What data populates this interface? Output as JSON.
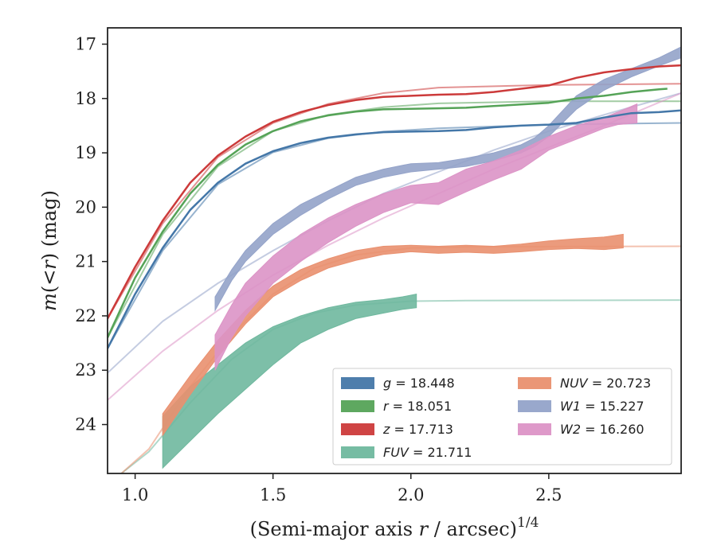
{
  "chart_data": {
    "type": "line",
    "xlabel": "(Semi-major axis r / arcsec)^{1/4}",
    "ylabel": "m(<r) (mag)",
    "xlim": [
      0.9,
      2.98
    ],
    "ylim": [
      24.9,
      16.7
    ],
    "y_inverted": true,
    "x_ticks": [
      1.0,
      1.5,
      2.0,
      2.5
    ],
    "x_tick_labels": [
      "1.0",
      "1.5",
      "2.0",
      "2.5"
    ],
    "y_ticks": [
      17,
      18,
      19,
      20,
      21,
      22,
      23,
      24
    ],
    "y_tick_labels": [
      "17",
      "18",
      "19",
      "20",
      "21",
      "22",
      "23",
      "24"
    ],
    "grid": false,
    "legend": {
      "placement": "lower-right",
      "columns": 2
    },
    "series": [
      {
        "name": "g = 18.448",
        "key": "g",
        "color": "#4477a8",
        "kind": "line",
        "lw": 2.5,
        "x": [
          0.9,
          1.0,
          1.1,
          1.2,
          1.3,
          1.4,
          1.5,
          1.6,
          1.7,
          1.8,
          1.9,
          2.0,
          2.1,
          2.2,
          2.3,
          2.4,
          2.5,
          2.6,
          2.7,
          2.8,
          2.9,
          2.98
        ],
        "y": [
          22.6,
          21.6,
          20.75,
          20.05,
          19.55,
          19.2,
          18.97,
          18.82,
          18.72,
          18.66,
          18.62,
          18.61,
          18.6,
          18.58,
          18.53,
          18.5,
          18.48,
          18.45,
          18.35,
          18.27,
          18.25,
          18.22
        ],
        "model": {
          "x": [
            0.9,
            1.1,
            1.3,
            1.5,
            1.7,
            1.9,
            2.1,
            2.5,
            2.98
          ],
          "y": [
            22.6,
            20.8,
            19.58,
            18.99,
            18.73,
            18.61,
            18.55,
            18.48,
            18.45
          ]
        }
      },
      {
        "name": "r = 18.051",
        "key": "r",
        "color": "#55a357",
        "kind": "line",
        "lw": 2.5,
        "x": [
          0.9,
          1.0,
          1.1,
          1.2,
          1.3,
          1.4,
          1.5,
          1.6,
          1.7,
          1.8,
          1.9,
          2.0,
          2.1,
          2.2,
          2.3,
          2.4,
          2.5,
          2.6,
          2.7,
          2.8,
          2.9,
          2.93
        ],
        "y": [
          22.4,
          21.3,
          20.45,
          19.75,
          19.22,
          18.85,
          18.6,
          18.42,
          18.31,
          18.24,
          18.2,
          18.19,
          18.18,
          18.17,
          18.14,
          18.11,
          18.08,
          18.0,
          17.95,
          17.88,
          17.83,
          17.82
        ],
        "model": {
          "x": [
            0.9,
            1.1,
            1.3,
            1.5,
            1.7,
            1.9,
            2.1,
            2.5,
            2.98
          ],
          "y": [
            22.4,
            20.5,
            19.25,
            18.6,
            18.3,
            18.16,
            18.09,
            18.05,
            18.05
          ]
        }
      },
      {
        "name": "z = 17.713",
        "key": "z",
        "color": "#cc3a3a",
        "kind": "line",
        "lw": 2.5,
        "x": [
          0.9,
          1.0,
          1.1,
          1.2,
          1.3,
          1.4,
          1.5,
          1.6,
          1.7,
          1.8,
          1.9,
          2.0,
          2.1,
          2.2,
          2.3,
          2.4,
          2.5,
          2.6,
          2.7,
          2.8,
          2.9,
          2.98
        ],
        "y": [
          22.05,
          21.1,
          20.25,
          19.55,
          19.05,
          18.7,
          18.43,
          18.25,
          18.12,
          18.03,
          17.97,
          17.95,
          17.93,
          17.92,
          17.88,
          17.82,
          17.76,
          17.62,
          17.52,
          17.46,
          17.41,
          17.39
        ],
        "model": {
          "x": [
            0.9,
            1.1,
            1.3,
            1.5,
            1.7,
            1.9,
            2.1,
            2.5,
            2.98
          ],
          "y": [
            22.05,
            20.3,
            19.08,
            18.45,
            18.1,
            17.9,
            17.8,
            17.75,
            17.73
          ]
        }
      },
      {
        "name": "FUV = 21.711",
        "key": "FUV",
        "color": "#6fb89e",
        "kind": "band",
        "x": [
          1.1,
          1.2,
          1.3,
          1.4,
          1.5,
          1.6,
          1.7,
          1.8,
          1.9,
          1.97,
          2.02
        ],
        "y_bright": [
          23.85,
          23.3,
          22.9,
          22.5,
          22.2,
          22.0,
          21.85,
          21.75,
          21.7,
          21.65,
          21.6
        ],
        "y_faint": [
          24.8,
          24.3,
          23.8,
          23.35,
          22.9,
          22.5,
          22.25,
          22.05,
          21.95,
          21.88,
          21.85
        ],
        "model": {
          "x": [
            0.95,
            1.05,
            1.2,
            1.35,
            1.5,
            1.65,
            1.8,
            2.0,
            2.2,
            2.98
          ],
          "y": [
            24.9,
            24.5,
            23.6,
            22.8,
            22.25,
            21.95,
            21.8,
            21.73,
            21.72,
            21.71
          ]
        }
      },
      {
        "name": "NUV = 20.723",
        "key": "NUV",
        "color": "#e9906f",
        "kind": "band",
        "x": [
          1.1,
          1.2,
          1.3,
          1.4,
          1.5,
          1.6,
          1.7,
          1.8,
          1.9,
          2.0,
          2.1,
          2.2,
          2.3,
          2.4,
          2.5,
          2.6,
          2.7,
          2.77
        ],
        "y_bright": [
          23.8,
          23.1,
          22.45,
          21.9,
          21.45,
          21.15,
          20.95,
          20.8,
          20.72,
          20.7,
          20.72,
          20.7,
          20.72,
          20.68,
          20.62,
          20.58,
          20.55,
          20.5
        ],
        "y_faint": [
          24.2,
          23.45,
          22.75,
          22.15,
          21.65,
          21.35,
          21.12,
          20.98,
          20.87,
          20.82,
          20.85,
          20.83,
          20.85,
          20.82,
          20.78,
          20.76,
          20.78,
          20.75
        ],
        "model": {
          "x": [
            0.95,
            1.05,
            1.2,
            1.35,
            1.5,
            1.65,
            1.8,
            2.0,
            2.2,
            2.98
          ],
          "y": [
            24.9,
            24.45,
            23.3,
            22.35,
            21.6,
            21.12,
            20.88,
            20.75,
            20.73,
            20.72
          ]
        }
      },
      {
        "name": "W1 = 15.227",
        "key": "W1",
        "color": "#94a3c9",
        "kind": "band",
        "x": [
          1.29,
          1.35,
          1.4,
          1.5,
          1.6,
          1.7,
          1.8,
          1.9,
          2.0,
          2.1,
          2.2,
          2.3,
          2.4,
          2.45,
          2.5,
          2.6,
          2.7,
          2.8,
          2.9,
          2.98
        ],
        "y_bright": [
          21.65,
          21.15,
          20.8,
          20.3,
          19.95,
          19.7,
          19.45,
          19.3,
          19.2,
          19.18,
          19.1,
          19.0,
          18.85,
          18.72,
          18.5,
          17.95,
          17.65,
          17.45,
          17.25,
          17.05
        ],
        "y_faint": [
          21.9,
          21.35,
          21.0,
          20.5,
          20.15,
          19.85,
          19.6,
          19.45,
          19.35,
          19.3,
          19.25,
          19.15,
          19.0,
          18.88,
          18.7,
          18.2,
          17.85,
          17.6,
          17.4,
          17.25
        ],
        "model": {
          "x": [
            0.9,
            1.1,
            1.3,
            1.5,
            1.7,
            1.9,
            2.1,
            2.3,
            2.5,
            2.7,
            2.98
          ],
          "y": [
            23.05,
            22.1,
            21.4,
            20.8,
            20.25,
            19.75,
            19.35,
            18.95,
            18.6,
            18.3,
            17.9
          ]
        }
      },
      {
        "name": "W2 = 16.260",
        "key": "W2",
        "color": "#dc94c6",
        "kind": "band",
        "x": [
          1.29,
          1.35,
          1.4,
          1.5,
          1.6,
          1.7,
          1.8,
          1.9,
          2.0,
          2.1,
          2.2,
          2.3,
          2.4,
          2.5,
          2.6,
          2.7,
          2.75,
          2.82
        ],
        "y_bright": [
          22.35,
          21.8,
          21.4,
          20.9,
          20.5,
          20.2,
          19.95,
          19.75,
          19.6,
          19.55,
          19.3,
          19.15,
          18.95,
          18.7,
          18.5,
          18.35,
          18.25,
          18.1
        ],
        "y_faint": [
          23.0,
          22.4,
          22.0,
          21.4,
          21.0,
          20.65,
          20.35,
          20.1,
          19.92,
          19.95,
          19.72,
          19.5,
          19.3,
          18.95,
          18.75,
          18.55,
          18.48,
          18.45
        ],
        "model": {
          "x": [
            0.9,
            1.1,
            1.3,
            1.5,
            1.7,
            1.9,
            2.1,
            2.3,
            2.5,
            2.7,
            2.98
          ],
          "y": [
            23.55,
            22.65,
            21.9,
            21.25,
            20.7,
            20.2,
            19.75,
            19.3,
            18.9,
            18.5,
            17.9
          ]
        }
      }
    ],
    "legend_order": [
      "g",
      "r",
      "z",
      "FUV",
      "NUV",
      "W1",
      "W2"
    ]
  }
}
